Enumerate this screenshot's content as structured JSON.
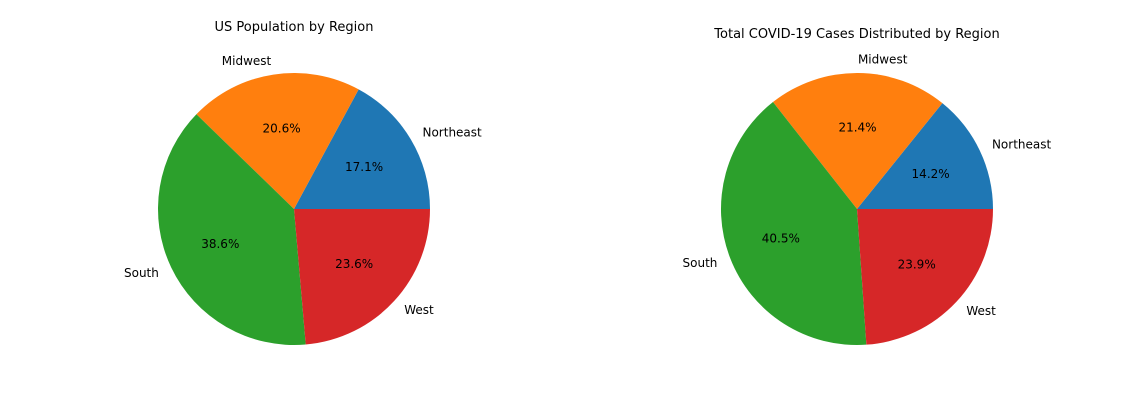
{
  "chart_data": [
    {
      "type": "pie",
      "title": "US Population by Region",
      "categories": [
        "Northeast",
        "Midwest",
        "South",
        "West"
      ],
      "values": [
        17.1,
        20.6,
        38.6,
        23.6
      ],
      "value_labels": [
        "17.1%",
        "20.6%",
        "38.6%",
        "23.6%"
      ],
      "colors": [
        "#1f77b4",
        "#ff7f0e",
        "#2ca02c",
        "#d62728"
      ],
      "start_angle_deg": 0,
      "direction": "counterclockwise",
      "legend": "none"
    },
    {
      "type": "pie",
      "title": "Total COVID-19 Cases Distributed by Region",
      "categories": [
        "Northeast",
        "Midwest",
        "South",
        "West"
      ],
      "values": [
        14.2,
        21.4,
        40.5,
        23.9
      ],
      "value_labels": [
        "14.2%",
        "21.4%",
        "40.5%",
        "23.9%"
      ],
      "colors": [
        "#1f77b4",
        "#ff7f0e",
        "#2ca02c",
        "#d62728"
      ],
      "start_angle_deg": 0,
      "direction": "counterclockwise",
      "legend": "none"
    }
  ]
}
